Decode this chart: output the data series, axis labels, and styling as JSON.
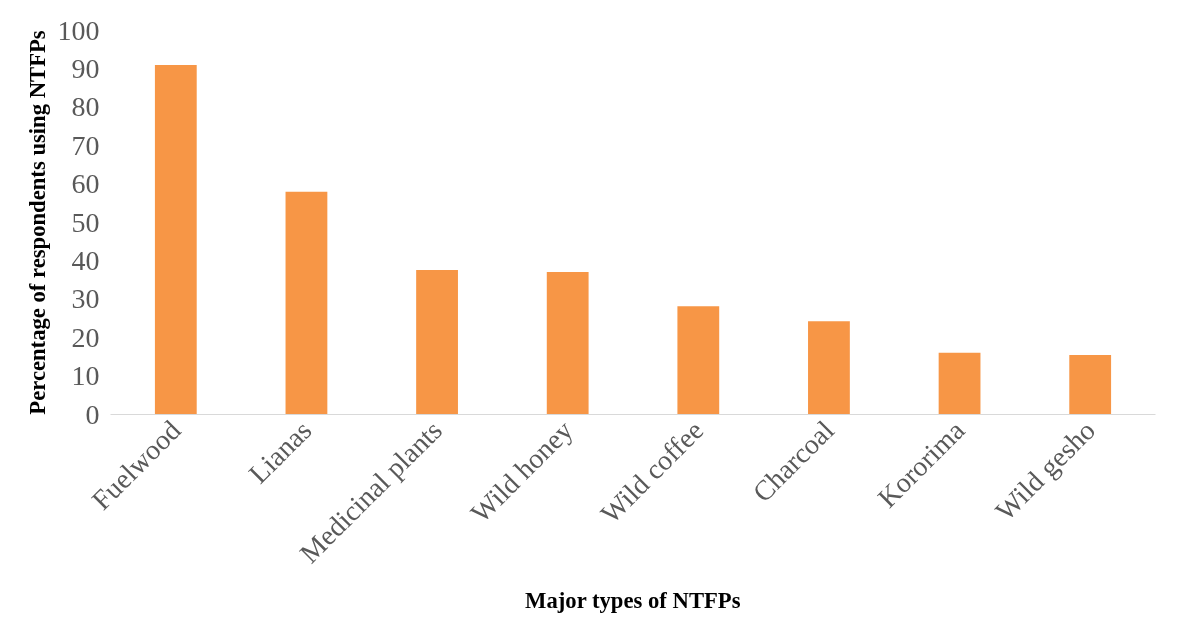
{
  "chart_data": {
    "type": "bar",
    "xlabel": "Major types of NTFPs",
    "ylabel": "Percentage of respondents using NTFPs",
    "categories": [
      "Fuelwood",
      "Lianas",
      "Medicinal plants",
      "Wild honey",
      "Wild coffee",
      "Charcoal",
      "Kororima",
      "Wild gesho"
    ],
    "values": [
      91,
      58,
      37.6,
      37.1,
      28.2,
      24.3,
      16.1,
      15.5
    ],
    "color": "#f79646",
    "ylim": [
      0,
      100
    ],
    "yticks": [
      0,
      10,
      20,
      30,
      40,
      50,
      60,
      70,
      80,
      90,
      100
    ],
    "grid": false
  }
}
